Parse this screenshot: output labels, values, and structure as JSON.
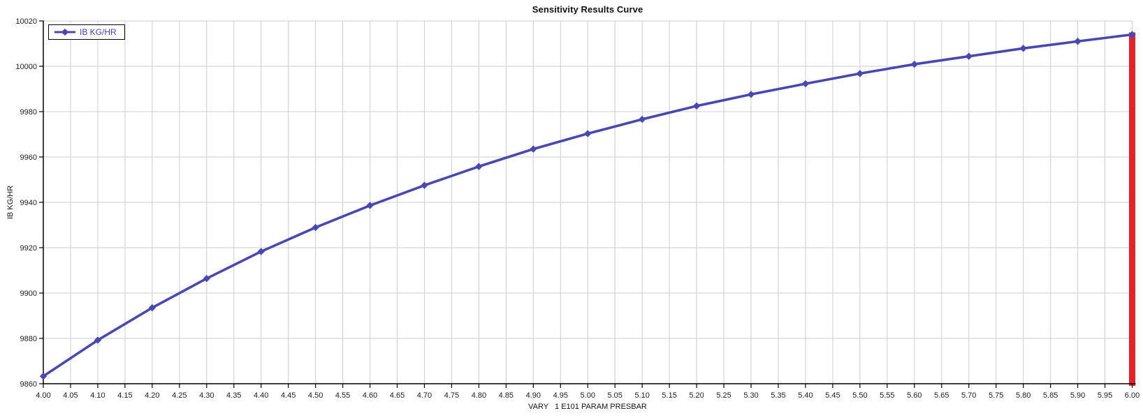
{
  "title": "Sensitivity Results Curve",
  "legend": {
    "series_label": "IB KG/HR"
  },
  "y_axis": {
    "label": "IB KG/HR"
  },
  "x_axis": {
    "label": "VARY   1 E101 PARAM PRESBAR"
  },
  "colors": {
    "line": "#4848b2",
    "legend_text": "#3c3cc8",
    "result_line": "#e3222a",
    "grid": "#cccccc",
    "axis": "#000000",
    "text": "#1a1a1a"
  },
  "chart_data": {
    "type": "line",
    "title": "Sensitivity Results Curve",
    "xlabel": "VARY   1 E101 PARAM PRESBAR",
    "ylabel": "IB KG/HR",
    "xlim": [
      4.0,
      6.0
    ],
    "ylim": [
      9860,
      10020
    ],
    "grid": true,
    "legend_position": "top-left",
    "x_ticks": [
      "4.00",
      "4.05",
      "4.10",
      "4.15",
      "4.20",
      "4.25",
      "4.30",
      "4.35",
      "4.40",
      "4.45",
      "4.50",
      "4.55",
      "4.60",
      "4.65",
      "4.70",
      "4.75",
      "4.80",
      "4.85",
      "4.90",
      "4.95",
      "5.00",
      "5.05",
      "5.10",
      "5.15",
      "5.20",
      "5.25",
      "5.30",
      "5.35",
      "5.40",
      "5.45",
      "5.50",
      "5.55",
      "5.60",
      "5.65",
      "5.70",
      "5.75",
      "5.80",
      "5.85",
      "5.90",
      "5.95",
      "6.00"
    ],
    "y_ticks": [
      "9860",
      "9880",
      "9900",
      "9920",
      "9940",
      "9960",
      "9980",
      "10000",
      "10020"
    ],
    "series": [
      {
        "name": "IB KG/HR",
        "x": [
          4.0,
          4.1,
          4.2,
          4.3,
          4.4,
          4.5,
          4.6,
          4.7,
          4.8,
          4.9,
          5.0,
          5.1,
          5.2,
          5.3,
          5.4,
          5.5,
          5.6,
          5.7,
          5.8,
          5.9,
          6.0
        ],
        "y": [
          9863.3,
          9879.2,
          9893.5,
          9906.4,
          9918.3,
          9928.9,
          9938.6,
          9947.5,
          9955.8,
          9963.5,
          9970.3,
          9976.6,
          9982.5,
          9987.6,
          9992.3,
          9996.8,
          10000.9,
          10004.4,
          10007.9,
          10011.0,
          10014.0
        ]
      }
    ],
    "annotations": [
      {
        "type": "vline",
        "x": 6.0,
        "y_from": 9860,
        "y_to": 10014.0,
        "color": "#e3222a",
        "meaning": "final-vary-value-marker"
      }
    ]
  }
}
